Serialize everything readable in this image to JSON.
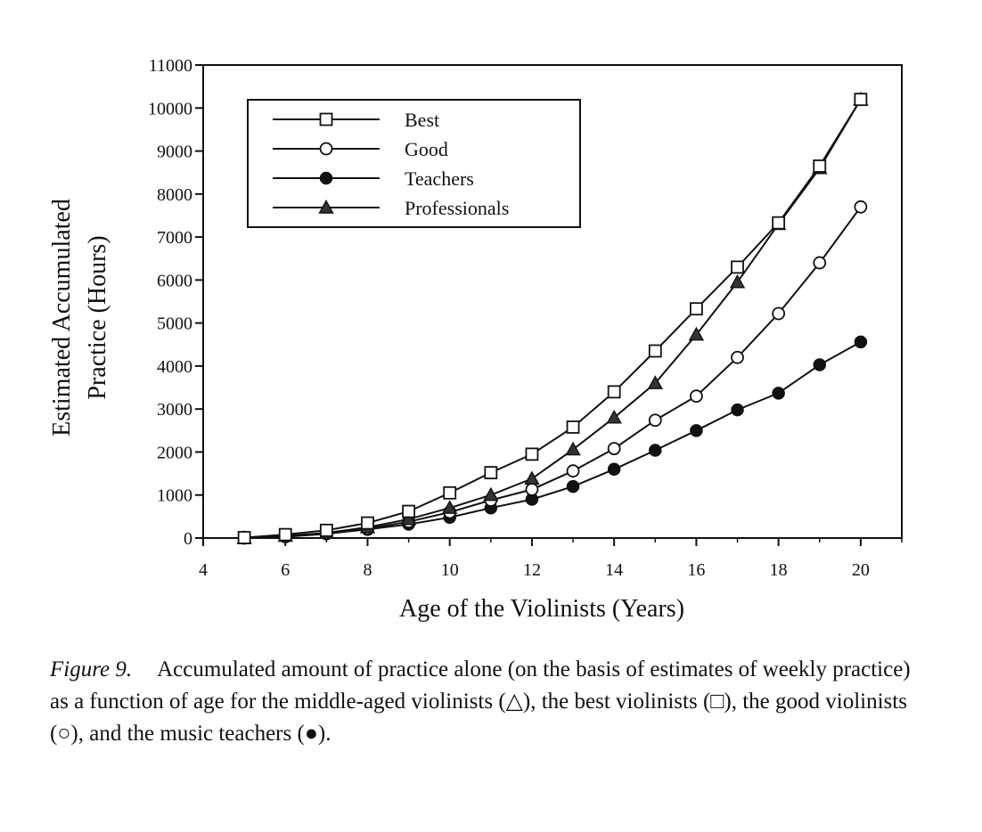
{
  "chart_data": {
    "type": "line",
    "title": "",
    "xlabel": "Age of the Violinists (Years)",
    "ylabel_lines": [
      "Estimated Accumulated",
      "Practice (Hours)"
    ],
    "xlim": [
      4,
      21
    ],
    "ylim": [
      0,
      11000
    ],
    "x_ticks": [
      "4",
      "6",
      "8",
      "10",
      "12",
      "14",
      "16",
      "18",
      "20"
    ],
    "y_ticks": [
      "0",
      "1000",
      "2000",
      "3000",
      "4000",
      "5000",
      "6000",
      "7000",
      "8000",
      "9000",
      "10000",
      "11000"
    ],
    "x": [
      5,
      6,
      7,
      8,
      9,
      10,
      11,
      12,
      13,
      14,
      15,
      16,
      17,
      18,
      19,
      20
    ],
    "legend_position": "top-left",
    "series": [
      {
        "name": "Best",
        "marker": "square-open",
        "values": [
          10,
          80,
          180,
          350,
          620,
          1050,
          1520,
          1950,
          2580,
          3400,
          4350,
          5330,
          6300,
          7330,
          8650,
          10200
        ]
      },
      {
        "name": "Good",
        "marker": "circle-open",
        "values": [
          0,
          30,
          100,
          220,
          380,
          600,
          880,
          1130,
          1560,
          2080,
          2740,
          3300,
          4200,
          5220,
          6400,
          7700
        ]
      },
      {
        "name": "Teachers",
        "marker": "circle-filled",
        "values": [
          0,
          40,
          100,
          200,
          320,
          480,
          700,
          900,
          1200,
          1600,
          2040,
          2500,
          2980,
          3370,
          4030,
          4560
        ]
      },
      {
        "name": "Professionals",
        "marker": "triangle-filled",
        "values": [
          0,
          50,
          120,
          250,
          440,
          700,
          1000,
          1380,
          2060,
          2800,
          3600,
          4730,
          5950,
          7300,
          8600,
          10200
        ]
      }
    ]
  },
  "caption": {
    "label": "Figure 9.",
    "text": "Accumulated amount of practice alone (on the basis of estimates of weekly practice) as a function of age for the middle-aged violinists (△), the best violinists (□), the good violinists (○), and the music teachers (●)."
  }
}
